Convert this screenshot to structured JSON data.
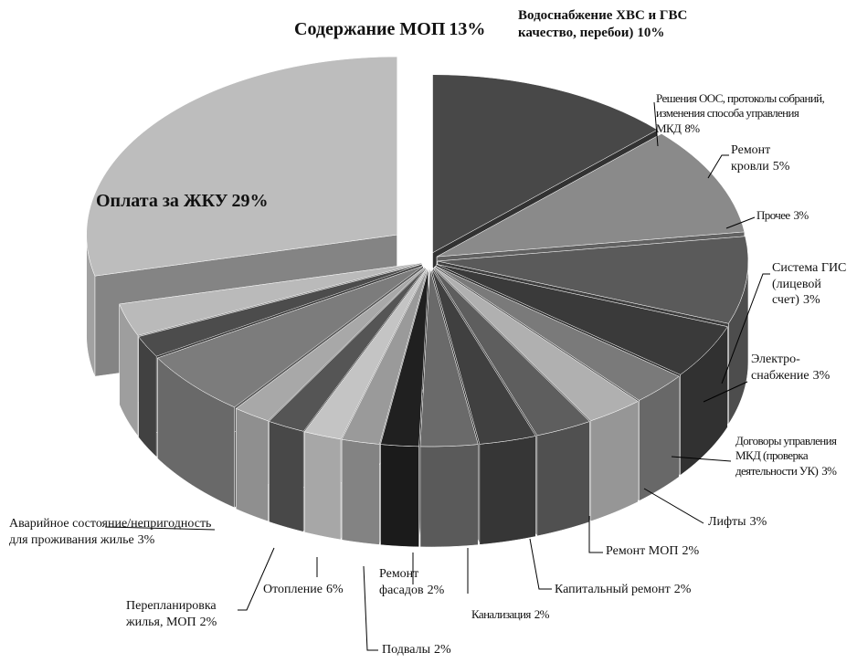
{
  "chart_data": {
    "type": "pie3d",
    "categories": [
      "Содержание МОП",
      "Водоснабжение ХВС и ГВС качество, перебои)",
      "Решения ООС, протоколы собраний, изменения способа управления МКД",
      "Ремонт кровли",
      "Прочее",
      "Система ГИС (лицевой счет)",
      "Электро-снабжение",
      "Договоры управления МКД (проверка деятельности УК)",
      "Лифты",
      "Ремонт МОП",
      "Капитальный ремонт",
      "Канализация",
      "Ремонт фасадов",
      "Подвалы",
      "Отопление",
      "Перепланировка жилья, МОП",
      "Аварийное состояние/непригодность для проживания жилье",
      "Оплата за ЖКУ"
    ],
    "values": [
      13,
      10,
      8,
      5,
      3,
      3,
      3,
      3,
      3,
      2,
      2,
      2,
      2,
      2,
      6,
      2,
      3,
      29
    ],
    "value_labels": [
      "13%",
      "10%",
      "8%",
      "5%",
      "3%",
      "3%",
      "3%",
      "3%",
      "3%",
      "2%",
      "2%",
      "2%",
      "2%",
      "2%",
      "6%",
      "2%",
      "3%",
      "29%"
    ],
    "colors": [
      "#484848",
      "#8a8a8a",
      "#5a5a5a",
      "#3a3a3a",
      "#7a7a7a",
      "#b0b0b0",
      "#5e5e5e",
      "#404040",
      "#6a6a6a",
      "#202020",
      "#9a9a9a",
      "#c4c4c4",
      "#555555",
      "#a8a8a8",
      "#7c7c7c",
      "#4c4c4c",
      "#bababa",
      "#bdbdbd"
    ]
  }
}
